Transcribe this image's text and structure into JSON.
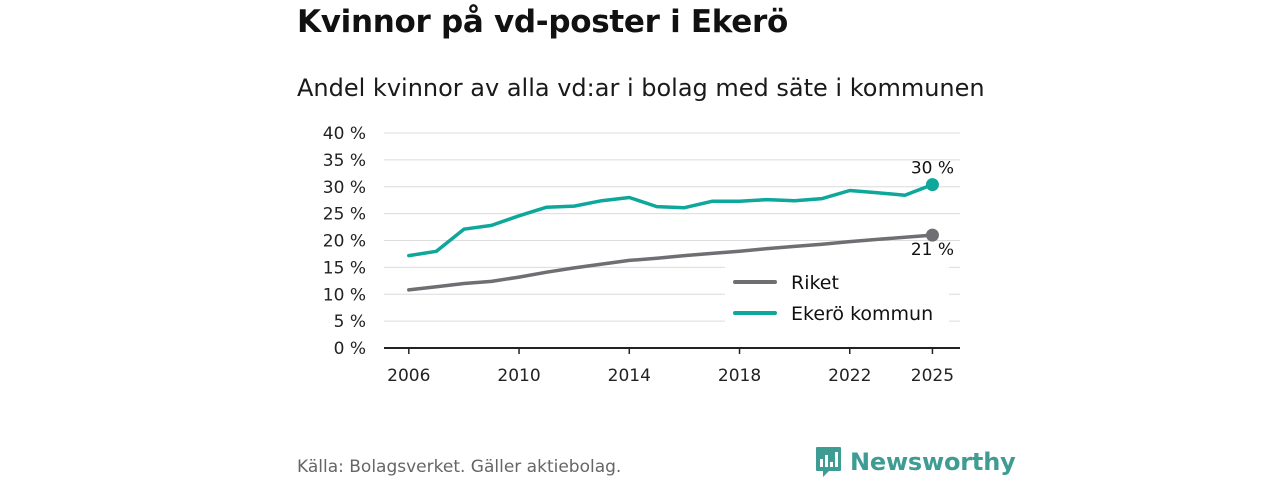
{
  "title": "Kvinnor på vd-poster i Ekerö",
  "subtitle": "Andel kvinnor av alla vd:ar i bolag med säte i kommunen",
  "source": "Källa: Bolagsverket. Gäller aktiebolag.",
  "brand": {
    "name": "Newsworthy",
    "icon": "newsworthy-logo-icon"
  },
  "colors": {
    "riket": "#6f6e72",
    "ekero": "#0ea79b",
    "grid": "#dcdcdc",
    "axis": "#222222"
  },
  "chart_data": {
    "type": "line",
    "title": "Andel kvinnor av alla vd:ar i bolag med säte i kommunen",
    "xlabel": "",
    "ylabel": "",
    "x": [
      2006,
      2007,
      2008,
      2009,
      2010,
      2011,
      2012,
      2013,
      2014,
      2015,
      2016,
      2017,
      2018,
      2019,
      2020,
      2021,
      2022,
      2023,
      2024,
      2025
    ],
    "xlim": [
      2005.1,
      2026
    ],
    "ylim": [
      0,
      40
    ],
    "x_ticks": [
      2006,
      2010,
      2014,
      2018,
      2022,
      2025
    ],
    "x_tick_labels": [
      "2006",
      "2010",
      "2014",
      "2018",
      "2022",
      "2025"
    ],
    "y_ticks": [
      0,
      5,
      10,
      15,
      20,
      25,
      30,
      35,
      40
    ],
    "y_tick_labels": [
      "0 %",
      "5 %",
      "10 %",
      "15 %",
      "20 %",
      "25 %",
      "30 %",
      "35 %",
      "40 %"
    ],
    "grid": true,
    "legend_position": "bottom-right",
    "series": [
      {
        "name": "Riket",
        "color": "#6f6e72",
        "values": [
          10.8,
          11.4,
          12.0,
          12.4,
          13.2,
          14.1,
          14.9,
          15.6,
          16.3,
          16.7,
          17.2,
          17.6,
          18.0,
          18.5,
          18.9,
          19.3,
          19.8,
          20.2,
          20.6,
          21.0
        ],
        "end_label": "21 %"
      },
      {
        "name": "Ekerö kommun",
        "color": "#0ea79b",
        "values": [
          17.2,
          18.0,
          22.1,
          22.8,
          24.6,
          26.2,
          26.4,
          27.4,
          28.0,
          26.3,
          26.1,
          27.3,
          27.3,
          27.6,
          27.4,
          27.8,
          29.3,
          28.9,
          28.4,
          30.4
        ],
        "end_label": "30 %"
      }
    ]
  }
}
